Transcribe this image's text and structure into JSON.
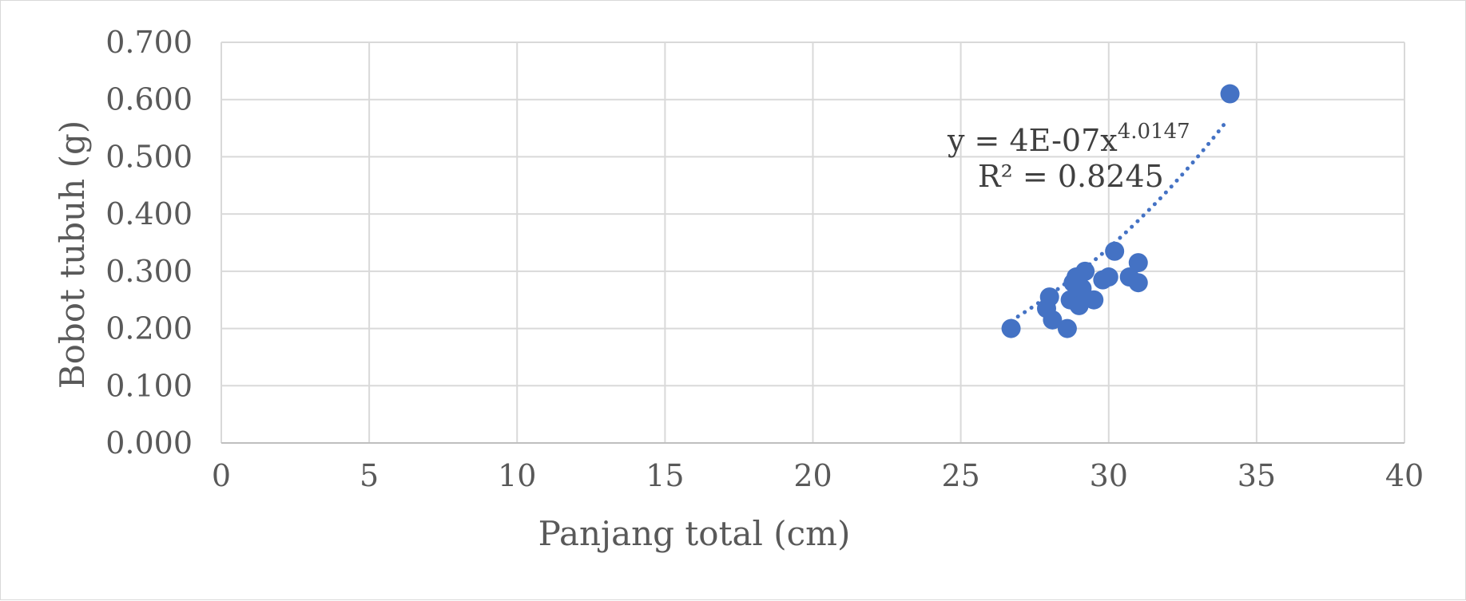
{
  "chart_data": {
    "type": "scatter",
    "title": "",
    "xlabel": "Panjang total (cm)",
    "ylabel": "Bobot tubuh (g)",
    "xlim": [
      0,
      40
    ],
    "ylim": [
      0,
      0.7
    ],
    "x_ticks": [
      "0",
      "5",
      "10",
      "15",
      "20",
      "25",
      "30",
      "35",
      "40"
    ],
    "y_ticks": [
      "0.000",
      "0.100",
      "0.200",
      "0.300",
      "0.400",
      "0.500",
      "0.600",
      "0.700"
    ],
    "grid": true,
    "legend": "none",
    "point_color": "#4472C4",
    "series": [
      {
        "x": [
          26.7,
          28.0,
          27.9,
          28.1,
          28.6,
          28.7,
          28.8,
          28.9,
          29.0,
          29.0,
          29.1,
          29.2,
          29.5,
          29.8,
          30.0,
          30.2,
          30.7,
          31.0,
          31.0,
          34.1
        ],
        "y": [
          0.2,
          0.255,
          0.235,
          0.215,
          0.2,
          0.25,
          0.28,
          0.29,
          0.255,
          0.24,
          0.27,
          0.3,
          0.25,
          0.285,
          0.29,
          0.335,
          0.29,
          0.28,
          0.315,
          0.61
        ]
      }
    ],
    "trendline": {
      "kind": "power",
      "a": 4e-07,
      "b": 4.0147,
      "x_range": [
        26.7,
        34.0
      ],
      "equation_main": "y = 4E-07x",
      "equation_exponent": "4.0147",
      "r_squared": "R² = 0.8245"
    }
  }
}
